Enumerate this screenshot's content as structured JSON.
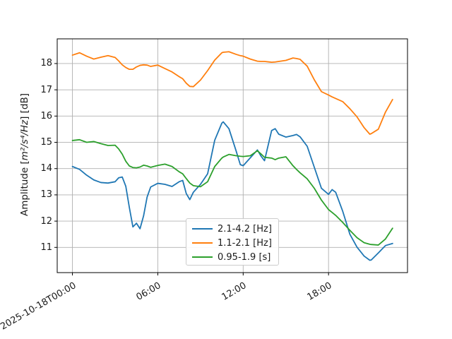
{
  "chart_data": {
    "type": "line",
    "title": "",
    "xlabel": "",
    "ylabel": {
      "prefix": "Amplitude [",
      "math_base": "m²/s⁴/Hz",
      "suffix": "] [dB]"
    },
    "grid": true,
    "grid_color": "#b0b0b0",
    "legend_position": "lower-center inside axes",
    "xlim_hours": [
      -1.07,
      23.55
    ],
    "ylim": [
      10.04,
      18.94
    ],
    "yticks": [
      11,
      12,
      13,
      14,
      15,
      16,
      17,
      18
    ],
    "xticks": [
      {
        "hour": 0,
        "label": "2025-10-18T00:00"
      },
      {
        "hour": 6,
        "label": "06:00"
      },
      {
        "hour": 12,
        "label": "12:00"
      },
      {
        "hour": 18,
        "label": "18:00"
      }
    ],
    "x_hours": [
      0,
      0.5,
      1,
      1.5,
      2,
      2.5,
      3,
      3.25,
      3.5,
      3.75,
      4,
      4.25,
      4.5,
      4.75,
      5,
      5.25,
      5.5,
      6,
      6.5,
      7,
      7.5,
      7.75,
      8,
      8.25,
      8.5,
      9,
      9.5,
      10,
      10.5,
      10.6,
      11,
      11.5,
      11.8,
      12,
      12.5,
      13,
      13.25,
      13.5,
      14,
      14.25,
      14.5,
      15,
      15.5,
      15.75,
      16,
      16.5,
      17,
      17.5,
      18,
      18.25,
      18.5,
      19,
      19.5,
      20,
      20.5,
      20.9,
      21,
      21.5,
      22,
      22.5
    ],
    "series": [
      {
        "name": "2.1-4.2 [Hz]",
        "color": "#1f77b4",
        "values": [
          14.08,
          13.97,
          13.75,
          13.57,
          13.47,
          13.45,
          13.5,
          13.65,
          13.68,
          13.33,
          12.52,
          11.78,
          11.92,
          11.71,
          12.2,
          12.92,
          13.3,
          13.44,
          13.4,
          13.32,
          13.5,
          13.55,
          13.05,
          12.82,
          13.1,
          13.4,
          13.8,
          15.08,
          15.73,
          15.78,
          15.52,
          14.68,
          14.15,
          14.11,
          14.41,
          14.71,
          14.48,
          14.3,
          15.45,
          15.52,
          15.31,
          15.2,
          15.26,
          15.3,
          15.21,
          14.85,
          14.05,
          13.25,
          13.02,
          13.2,
          13.1,
          12.37,
          11.5,
          11.01,
          10.67,
          10.51,
          10.52,
          10.79,
          11.07,
          11.15
        ]
      },
      {
        "name": "1.1-2.1 [Hz]",
        "color": "#ff7f0e",
        "values": [
          18.32,
          18.41,
          18.28,
          18.17,
          18.24,
          18.3,
          18.23,
          18.1,
          17.95,
          17.85,
          17.78,
          17.78,
          17.87,
          17.93,
          17.95,
          17.94,
          17.89,
          17.94,
          17.81,
          17.68,
          17.5,
          17.42,
          17.25,
          17.13,
          17.12,
          17.37,
          17.73,
          18.13,
          18.41,
          18.43,
          18.45,
          18.35,
          18.3,
          18.28,
          18.17,
          18.09,
          18.08,
          18.08,
          18.05,
          18.06,
          18.08,
          18.12,
          18.21,
          18.19,
          18.16,
          17.9,
          17.38,
          16.93,
          16.8,
          16.73,
          16.67,
          16.55,
          16.28,
          15.97,
          15.56,
          15.31,
          15.33,
          15.5,
          16.15,
          16.63
        ]
      },
      {
        "name": "0.95-1.9 [s]",
        "color": "#2ca02c",
        "values": [
          15.07,
          15.1,
          15.0,
          15.03,
          14.95,
          14.88,
          14.89,
          14.75,
          14.55,
          14.28,
          14.1,
          14.04,
          14.03,
          14.06,
          14.13,
          14.1,
          14.05,
          14.12,
          14.17,
          14.08,
          13.88,
          13.8,
          13.62,
          13.45,
          13.35,
          13.31,
          13.5,
          14.08,
          14.4,
          14.44,
          14.54,
          14.49,
          14.47,
          14.46,
          14.49,
          14.68,
          14.56,
          14.43,
          14.4,
          14.34,
          14.4,
          14.45,
          14.11,
          13.97,
          13.84,
          13.61,
          13.25,
          12.8,
          12.44,
          12.33,
          12.22,
          11.95,
          11.65,
          11.37,
          11.18,
          11.12,
          11.11,
          11.09,
          11.32,
          11.73
        ]
      }
    ],
    "line_width": 1.8
  }
}
